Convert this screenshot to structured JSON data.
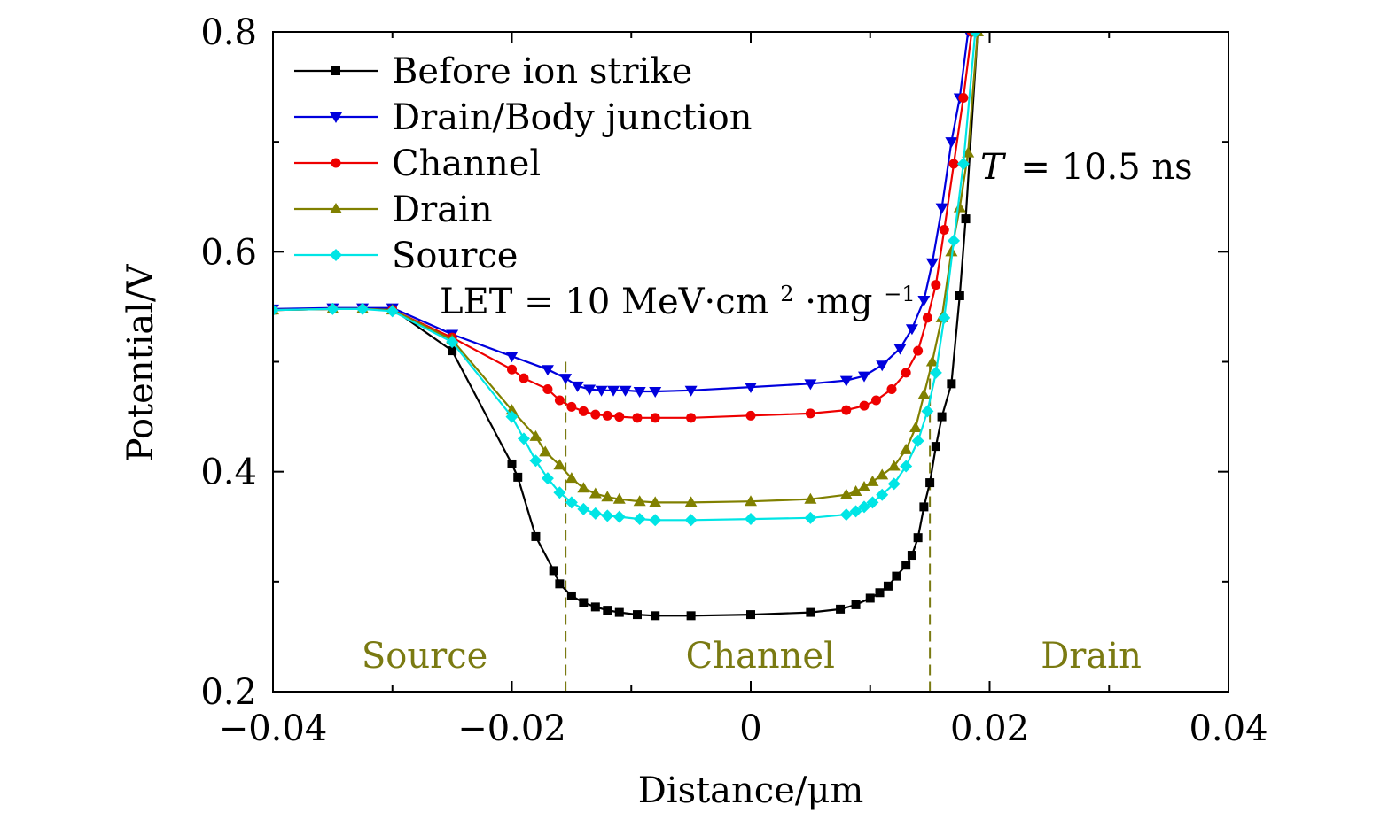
{
  "chart_data": {
    "type": "line",
    "xlabel": "Distance/μm",
    "ylabel": "Potential/V",
    "xlim": [
      -0.04,
      0.04
    ],
    "ylim": [
      0.2,
      0.8
    ],
    "xticks": [
      -0.04,
      -0.02,
      0,
      0.02,
      0.04
    ],
    "xtick_labels": [
      "−0.04",
      "−0.02",
      "0",
      "0.02",
      "0.04"
    ],
    "yticks": [
      0.2,
      0.4,
      0.6,
      0.8
    ],
    "ytick_labels": [
      "0.2",
      "0.4",
      "0.6",
      "0.8"
    ],
    "grid": false,
    "legend_position": "top-left",
    "annotations": {
      "time_italic": "T",
      "time_value": "= 10.5 ns",
      "let_prefix": "LET = 10 MeV·cm",
      "let_sup1": "2",
      "let_middle": "·mg",
      "let_sup2": "−1"
    },
    "regions": {
      "color": "#7a7a12",
      "boundaries_x": [
        -0.0155,
        0.015
      ],
      "labels": [
        {
          "text": "Source",
          "x": -0.0273
        },
        {
          "text": "Channel",
          "x": 0.0008
        },
        {
          "text": "Drain",
          "x": 0.0285
        }
      ]
    },
    "series": [
      {
        "name": "Before ion strike",
        "color": "#000000",
        "marker": "square",
        "x": [
          -0.04,
          -0.035,
          -0.0325,
          -0.03,
          -0.025,
          -0.02,
          -0.0195,
          -0.018,
          -0.0165,
          -0.016,
          -0.015,
          -0.014,
          -0.013,
          -0.012,
          -0.011,
          -0.0095,
          -0.008,
          -0.005,
          0.0,
          0.005,
          0.0075,
          0.0088,
          0.01,
          0.0108,
          0.0115,
          0.0122,
          0.013,
          0.0135,
          0.014,
          0.0145,
          0.015,
          0.0155,
          0.016,
          0.0168,
          0.0175,
          0.018,
          0.019
        ],
        "y": [
          0.547,
          0.548,
          0.548,
          0.548,
          0.51,
          0.407,
          0.395,
          0.341,
          0.31,
          0.298,
          0.287,
          0.281,
          0.277,
          0.274,
          0.272,
          0.27,
          0.269,
          0.269,
          0.27,
          0.272,
          0.275,
          0.279,
          0.285,
          0.29,
          0.296,
          0.305,
          0.315,
          0.324,
          0.34,
          0.368,
          0.39,
          0.423,
          0.45,
          0.48,
          0.56,
          0.63,
          0.8
        ]
      },
      {
        "name": "Drain/Body junction",
        "color": "#0000dd",
        "marker": "triangle-down",
        "x": [
          -0.04,
          -0.035,
          -0.0325,
          -0.03,
          -0.025,
          -0.02,
          -0.017,
          -0.0155,
          -0.0145,
          -0.0135,
          -0.0125,
          -0.0115,
          -0.0105,
          -0.0093,
          -0.008,
          -0.005,
          0.0,
          0.005,
          0.008,
          0.0095,
          0.011,
          0.0125,
          0.0135,
          0.0145,
          0.0152,
          0.016,
          0.0168,
          0.0175,
          0.0182
        ],
        "y": [
          0.548,
          0.549,
          0.549,
          0.549,
          0.525,
          0.505,
          0.493,
          0.485,
          0.478,
          0.475,
          0.474,
          0.474,
          0.474,
          0.473,
          0.473,
          0.474,
          0.477,
          0.48,
          0.483,
          0.487,
          0.497,
          0.512,
          0.53,
          0.556,
          0.59,
          0.64,
          0.7,
          0.74,
          0.8
        ]
      },
      {
        "name": "Channel",
        "color": "#ee0000",
        "marker": "circle",
        "x": [
          -0.04,
          -0.035,
          -0.0325,
          -0.03,
          -0.025,
          -0.02,
          -0.019,
          -0.017,
          -0.016,
          -0.015,
          -0.014,
          -0.013,
          -0.012,
          -0.011,
          -0.0095,
          -0.008,
          -0.005,
          0.0,
          0.005,
          0.008,
          0.0095,
          0.0105,
          0.0118,
          0.013,
          0.014,
          0.0148,
          0.0155,
          0.0162,
          0.017,
          0.0178,
          0.0185
        ],
        "y": [
          0.547,
          0.548,
          0.548,
          0.547,
          0.522,
          0.493,
          0.485,
          0.475,
          0.465,
          0.459,
          0.455,
          0.452,
          0.451,
          0.45,
          0.449,
          0.449,
          0.449,
          0.451,
          0.453,
          0.456,
          0.46,
          0.465,
          0.475,
          0.49,
          0.51,
          0.54,
          0.57,
          0.62,
          0.68,
          0.74,
          0.8
        ]
      },
      {
        "name": "Drain",
        "color": "#808000",
        "marker": "triangle-up",
        "x": [
          -0.04,
          -0.035,
          -0.0325,
          -0.03,
          -0.025,
          -0.02,
          -0.018,
          -0.0172,
          -0.016,
          -0.015,
          -0.014,
          -0.013,
          -0.012,
          -0.011,
          -0.0093,
          -0.008,
          -0.005,
          0.0,
          0.005,
          0.008,
          0.0088,
          0.0095,
          0.0102,
          0.011,
          0.012,
          0.013,
          0.0138,
          0.0145,
          0.0152,
          0.016,
          0.0168,
          0.0175,
          0.0182,
          0.019
        ],
        "y": [
          0.547,
          0.548,
          0.548,
          0.547,
          0.52,
          0.456,
          0.432,
          0.418,
          0.406,
          0.394,
          0.385,
          0.38,
          0.377,
          0.375,
          0.373,
          0.372,
          0.372,
          0.373,
          0.375,
          0.379,
          0.382,
          0.386,
          0.391,
          0.397,
          0.405,
          0.42,
          0.44,
          0.47,
          0.5,
          0.54,
          0.6,
          0.64,
          0.69,
          0.8
        ]
      },
      {
        "name": "Source",
        "color": "#00e5e5",
        "marker": "diamond",
        "x": [
          -0.04,
          -0.035,
          -0.0325,
          -0.03,
          -0.025,
          -0.02,
          -0.019,
          -0.018,
          -0.017,
          -0.016,
          -0.015,
          -0.014,
          -0.013,
          -0.012,
          -0.011,
          -0.0093,
          -0.008,
          -0.005,
          0.0,
          0.005,
          0.008,
          0.0088,
          0.0095,
          0.0102,
          0.011,
          0.012,
          0.013,
          0.014,
          0.0148,
          0.0155,
          0.0162,
          0.017,
          0.0178,
          0.0188
        ],
        "y": [
          0.547,
          0.548,
          0.548,
          0.546,
          0.518,
          0.45,
          0.43,
          0.41,
          0.394,
          0.381,
          0.372,
          0.366,
          0.362,
          0.36,
          0.359,
          0.357,
          0.356,
          0.356,
          0.357,
          0.358,
          0.361,
          0.364,
          0.368,
          0.372,
          0.379,
          0.389,
          0.405,
          0.428,
          0.455,
          0.49,
          0.54,
          0.61,
          0.68,
          0.8
        ]
      }
    ]
  }
}
